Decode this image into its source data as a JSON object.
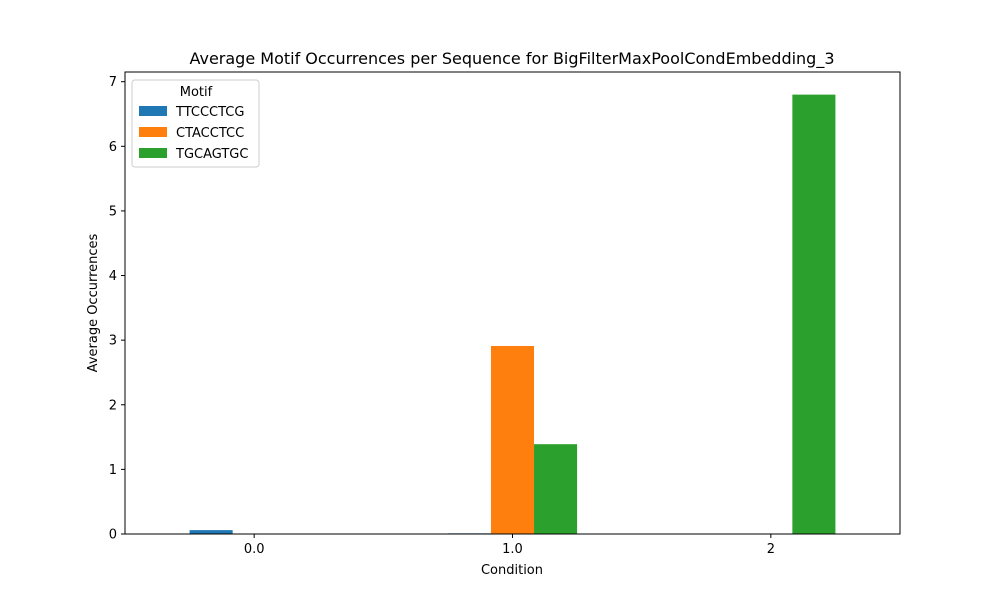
{
  "chart_data": {
    "type": "bar",
    "title": "Average Motif Occurrences per Sequence for BigFilterMaxPoolCondEmbedding_3",
    "xlabel": "Condition",
    "ylabel": "Average Occurrences",
    "categories": [
      "0.0",
      "1.0",
      "2"
    ],
    "ylim": [
      0,
      7.15
    ],
    "yticks": [
      0,
      1,
      2,
      3,
      4,
      5,
      6,
      7
    ],
    "legend_title": "Motif",
    "legend_position": "top-left",
    "grid": false,
    "series": [
      {
        "name": "TTCCCTCG",
        "color": "#1f77b4",
        "values": [
          0.06,
          0.01,
          0.0
        ]
      },
      {
        "name": "CTACCTCC",
        "color": "#ff7f0e",
        "values": [
          0.0,
          2.91,
          0.0
        ]
      },
      {
        "name": "TGCAGTGC",
        "color": "#2ca02c",
        "values": [
          0.0,
          1.39,
          6.8
        ]
      }
    ]
  }
}
